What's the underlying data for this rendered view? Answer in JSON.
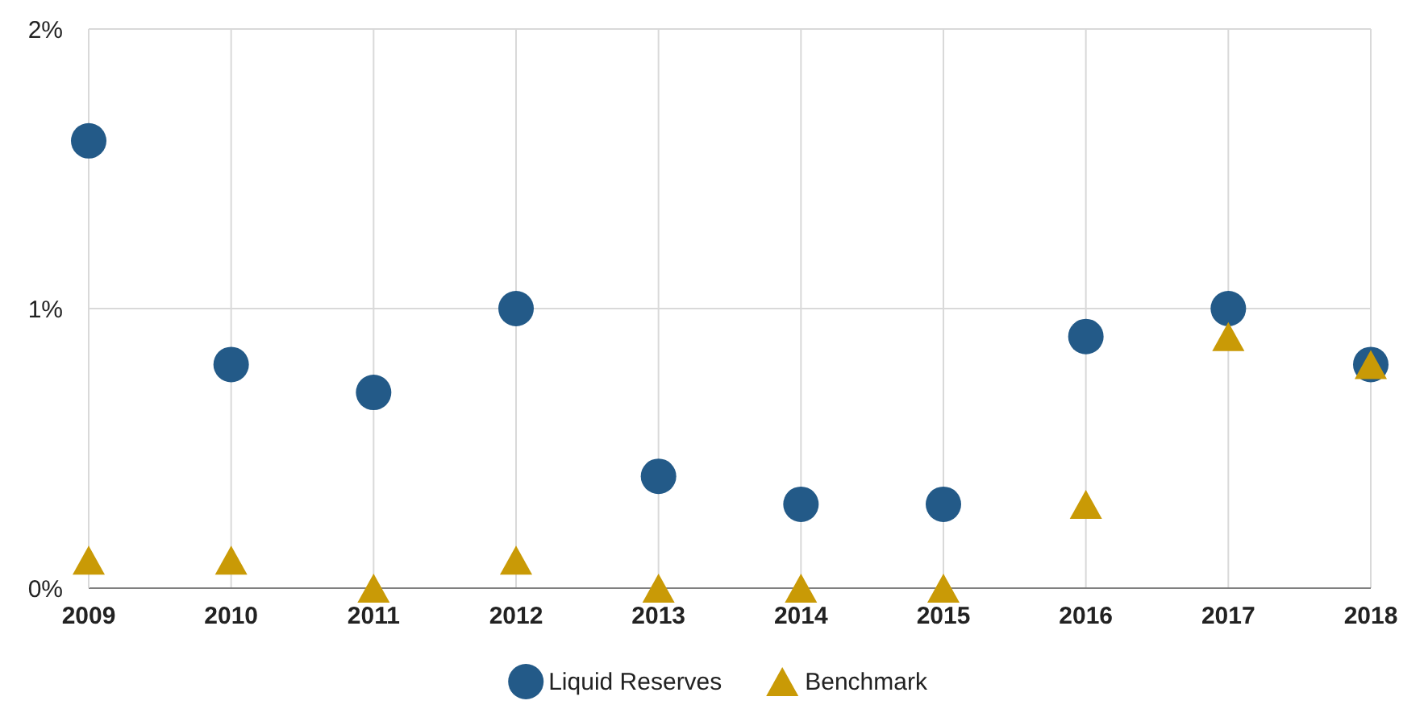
{
  "chart_data": {
    "type": "scatter",
    "categories": [
      "2009",
      "2010",
      "2011",
      "2012",
      "2013",
      "2014",
      "2015",
      "2016",
      "2017",
      "2018"
    ],
    "series": [
      {
        "name": "Liquid Reserves",
        "color": "#235a88",
        "marker": "circle",
        "values": [
          1.6,
          0.8,
          0.7,
          1.0,
          0.4,
          0.3,
          0.3,
          0.9,
          1.0,
          0.8
        ]
      },
      {
        "name": "Benchmark",
        "color": "#c99a06",
        "marker": "triangle",
        "values": [
          0.1,
          0.1,
          0.0,
          0.1,
          0.0,
          0.0,
          0.0,
          0.3,
          0.9,
          0.8
        ]
      }
    ],
    "ylim": [
      0,
      2
    ],
    "yticks": [
      {
        "value": 0,
        "label": "0%"
      },
      {
        "value": 1,
        "label": "1%"
      },
      {
        "value": 2,
        "label": "2%"
      }
    ],
    "grid": true,
    "legend": "bottom"
  }
}
